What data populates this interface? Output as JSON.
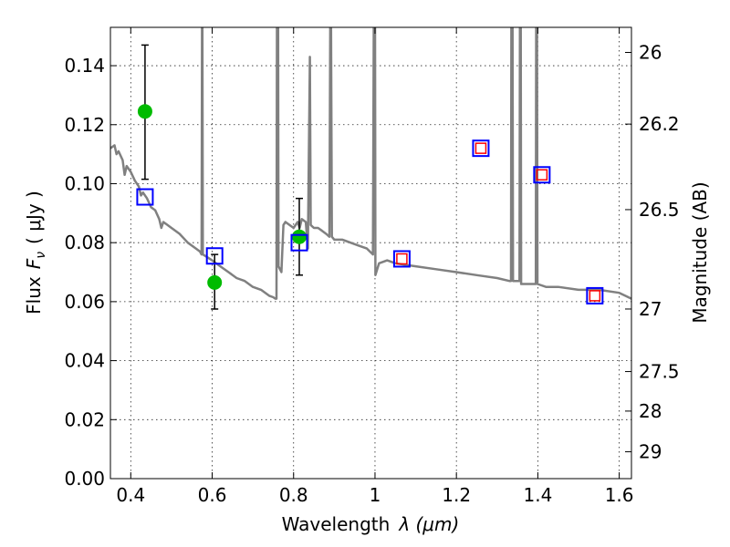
{
  "chart_data": {
    "type": "scatter",
    "xlabel": "Wavelength",
    "xlabel_symbol": "λ (μm)",
    "ylabel": "Flux",
    "ylabel_symbol": "F",
    "ylabel_subscript": "ν",
    "ylabel_unit": "( μJy )",
    "y2label": "Magnitude (AB)",
    "xlim": [
      0.35,
      1.63
    ],
    "ylim": [
      0.0,
      0.153
    ],
    "grid": true,
    "x_ticks": [
      0.4,
      0.6,
      0.8,
      1.0,
      1.2,
      1.4,
      1.6
    ],
    "x_tick_labels": [
      "0.4",
      "0.6",
      "0.8",
      "1",
      "1.2",
      "1.4",
      "1.6"
    ],
    "y_ticks": [
      0.0,
      0.02,
      0.04,
      0.06,
      0.08,
      0.1,
      0.12,
      0.14
    ],
    "y_tick_labels": [
      "0.00",
      "0.02",
      "0.04",
      "0.06",
      "0.08",
      "0.10",
      "0.12",
      "0.14"
    ],
    "y2_ticks": [
      {
        "label": "26",
        "flux": 0.1445
      },
      {
        "label": "26.2",
        "flux": 0.1202
      },
      {
        "label": "26.5",
        "flux": 0.0912
      },
      {
        "label": "27",
        "flux": 0.0575
      },
      {
        "label": "27.5",
        "flux": 0.0363
      },
      {
        "label": "28",
        "flux": 0.0229
      },
      {
        "label": "29",
        "flux": 0.0091
      }
    ],
    "series": [
      {
        "kind": "line",
        "color": "#808080",
        "points": [
          [
            0.35,
            0.112
          ],
          [
            0.36,
            0.113
          ],
          [
            0.365,
            0.11
          ],
          [
            0.37,
            0.111
          ],
          [
            0.38,
            0.108
          ],
          [
            0.385,
            0.103
          ],
          [
            0.39,
            0.106
          ],
          [
            0.4,
            0.104
          ],
          [
            0.41,
            0.101
          ],
          [
            0.42,
            0.099
          ],
          [
            0.425,
            0.096
          ],
          [
            0.43,
            0.097
          ],
          [
            0.44,
            0.095
          ],
          [
            0.45,
            0.092
          ],
          [
            0.46,
            0.091
          ],
          [
            0.47,
            0.088
          ],
          [
            0.475,
            0.085
          ],
          [
            0.48,
            0.087
          ],
          [
            0.49,
            0.086
          ],
          [
            0.5,
            0.085
          ],
          [
            0.52,
            0.083
          ],
          [
            0.54,
            0.08
          ],
          [
            0.56,
            0.078
          ],
          [
            0.57,
            0.077
          ],
          [
            0.574,
            0.076
          ],
          [
            0.575,
            0.153
          ],
          [
            0.576,
            0.153
          ],
          [
            0.577,
            0.076
          ],
          [
            0.6,
            0.074
          ],
          [
            0.62,
            0.072
          ],
          [
            0.64,
            0.07
          ],
          [
            0.66,
            0.068
          ],
          [
            0.68,
            0.067
          ],
          [
            0.7,
            0.065
          ],
          [
            0.72,
            0.064
          ],
          [
            0.74,
            0.062
          ],
          [
            0.75,
            0.0615
          ],
          [
            0.755,
            0.061
          ],
          [
            0.758,
            0.061
          ],
          [
            0.759,
            0.153
          ],
          [
            0.762,
            0.153
          ],
          [
            0.763,
            0.072
          ],
          [
            0.77,
            0.07
          ],
          [
            0.775,
            0.086
          ],
          [
            0.78,
            0.087
          ],
          [
            0.79,
            0.086
          ],
          [
            0.8,
            0.085
          ],
          [
            0.81,
            0.087
          ],
          [
            0.815,
            0.085
          ],
          [
            0.82,
            0.088
          ],
          [
            0.83,
            0.087
          ],
          [
            0.835,
            0.078
          ],
          [
            0.84,
            0.143
          ],
          [
            0.842,
            0.086
          ],
          [
            0.85,
            0.085
          ],
          [
            0.86,
            0.085
          ],
          [
            0.87,
            0.084
          ],
          [
            0.88,
            0.083
          ],
          [
            0.888,
            0.082
          ],
          [
            0.89,
            0.153
          ],
          [
            0.892,
            0.153
          ],
          [
            0.894,
            0.082
          ],
          [
            0.9,
            0.081
          ],
          [
            0.92,
            0.081
          ],
          [
            0.94,
            0.08
          ],
          [
            0.96,
            0.079
          ],
          [
            0.98,
            0.078
          ],
          [
            0.995,
            0.076
          ],
          [
            0.997,
            0.153
          ],
          [
            1.0,
            0.153
          ],
          [
            1.001,
            0.069
          ],
          [
            1.01,
            0.073
          ],
          [
            1.03,
            0.074
          ],
          [
            1.05,
            0.073
          ],
          [
            1.1,
            0.072
          ],
          [
            1.15,
            0.071
          ],
          [
            1.2,
            0.07
          ],
          [
            1.25,
            0.069
          ],
          [
            1.3,
            0.068
          ],
          [
            1.33,
            0.067
          ],
          [
            1.334,
            0.067
          ],
          [
            1.335,
            0.153
          ],
          [
            1.338,
            0.153
          ],
          [
            1.339,
            0.067
          ],
          [
            1.355,
            0.067
          ],
          [
            1.356,
            0.153
          ],
          [
            1.358,
            0.153
          ],
          [
            1.359,
            0.066
          ],
          [
            1.38,
            0.066
          ],
          [
            1.395,
            0.066
          ],
          [
            1.396,
            0.153
          ],
          [
            1.398,
            0.153
          ],
          [
            1.399,
            0.066
          ],
          [
            1.42,
            0.065
          ],
          [
            1.45,
            0.065
          ],
          [
            1.5,
            0.064
          ],
          [
            1.55,
            0.064
          ],
          [
            1.6,
            0.063
          ],
          [
            1.63,
            0.061
          ]
        ]
      },
      {
        "kind": "errorbar",
        "color": "#00bb00",
        "points": [
          {
            "x": 0.435,
            "y": 0.1245,
            "ylow": 0.1015,
            "yhigh": 0.147
          },
          {
            "x": 0.606,
            "y": 0.0665,
            "ylow": 0.0575,
            "yhigh": 0.076
          },
          {
            "x": 0.814,
            "y": 0.082,
            "ylow": 0.069,
            "yhigh": 0.095
          }
        ]
      },
      {
        "kind": "square",
        "color": "#0000ff",
        "points": [
          [
            0.435,
            0.0955
          ],
          [
            0.606,
            0.0755
          ],
          [
            0.814,
            0.08
          ],
          [
            1.066,
            0.0745
          ],
          [
            1.26,
            0.112
          ],
          [
            1.41,
            0.103
          ],
          [
            1.54,
            0.062
          ]
        ]
      },
      {
        "kind": "square",
        "color": "#ff0000",
        "points": [
          [
            1.066,
            0.0745
          ],
          [
            1.26,
            0.112
          ],
          [
            1.41,
            0.103
          ],
          [
            1.54,
            0.062
          ]
        ]
      }
    ]
  }
}
